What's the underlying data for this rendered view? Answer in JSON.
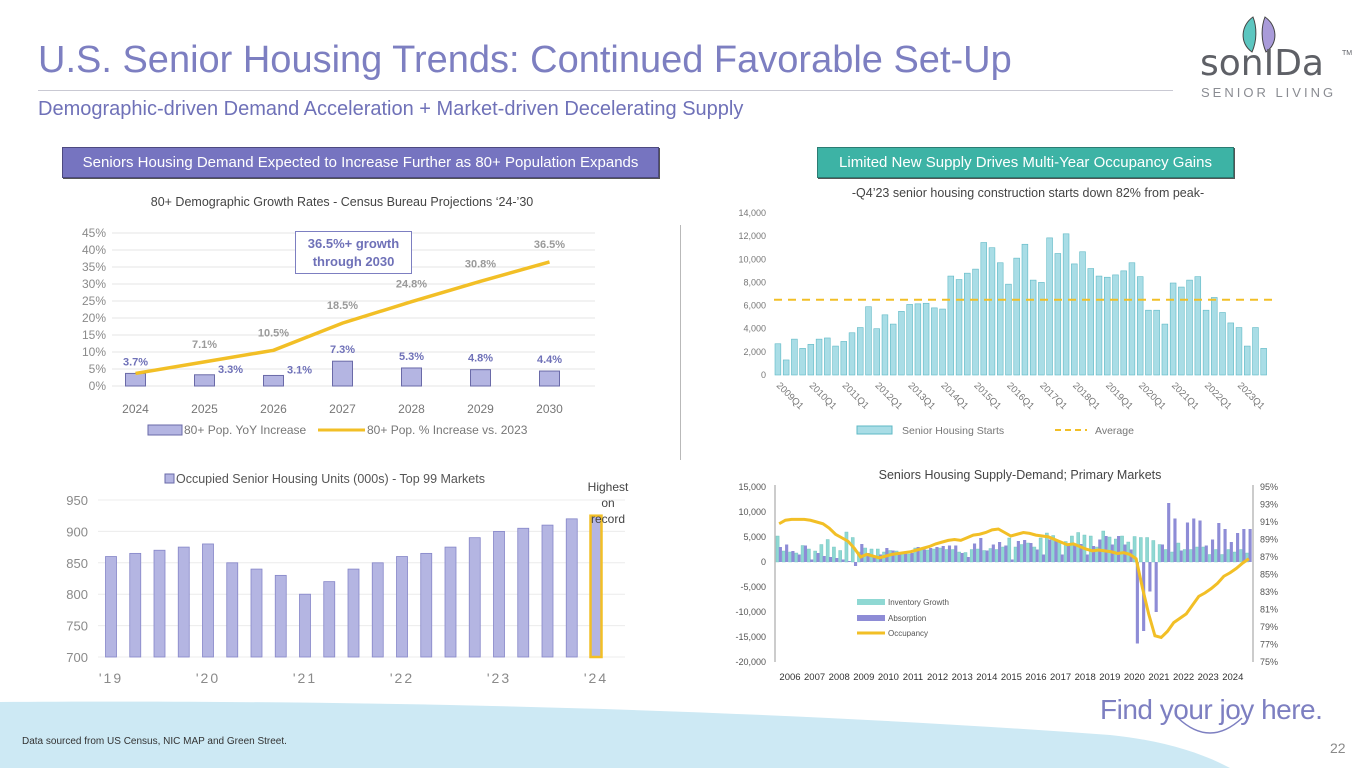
{
  "header": {
    "title": "U.S. Senior Housing Trends: Continued Favorable Set-Up",
    "subtitle": "Demographic-driven Demand Acceleration + Market-driven Decelerating Supply"
  },
  "logo": {
    "word": "sonIDa",
    "tm": "TM",
    "sub": "SENIOR LIVING",
    "leaf_colors": [
      "#5cc6c0",
      "#a99bd9"
    ]
  },
  "badges": {
    "left": "Seniors Housing Demand Expected to Increase Further as 80+ Population Expands",
    "right": "Limited New Supply Drives Multi-Year Occupancy Gains"
  },
  "footer": {
    "source": "Data sourced from US Census, NIC MAP and Green Street.",
    "tagline": "Find your joy here.",
    "page_number": "22"
  },
  "colors": {
    "purple": "#7d7fc1",
    "bar_purple": "#b4b5e2",
    "teal": "#3db3a5",
    "gold": "#f2bf26",
    "light_teal_bar": "#a9dde6",
    "band": "#cde9f4"
  },
  "chart_data": [
    {
      "id": "demographic",
      "type": "bar+line",
      "title": "80+ Demographic Growth Rates - Census Bureau Projections ‘24-’30",
      "categories": [
        "2024",
        "2025",
        "2026",
        "2027",
        "2028",
        "2029",
        "2030"
      ],
      "ylim": [
        0,
        45
      ],
      "yticks": [
        "0%",
        "5%",
        "10%",
        "15%",
        "20%",
        "25%",
        "30%",
        "35%",
        "40%",
        "45%"
      ],
      "series": [
        {
          "name": "80+ Pop. YoY Increase",
          "type": "bar",
          "values": [
            3.7,
            3.3,
            3.1,
            7.3,
            5.3,
            4.8,
            4.4
          ],
          "labels": [
            "3.7%",
            "3.3%",
            "3.1%",
            "7.3%",
            "5.3%",
            "4.8%",
            "4.4%"
          ]
        },
        {
          "name": "80+ Pop. % Increase vs. 2023",
          "type": "line",
          "values": [
            3.7,
            7.1,
            10.5,
            18.5,
            24.8,
            30.8,
            36.5
          ],
          "labels": [
            "",
            "7.1%",
            "10.5%",
            "18.5%",
            "24.8%",
            "30.8%",
            "36.5%"
          ]
        }
      ],
      "annotation": [
        "36.5%+ growth",
        "through 2030"
      ],
      "grid": true,
      "legend": "bottom"
    },
    {
      "id": "starts",
      "type": "bar",
      "title": "-Q4’23 senior housing construction starts down 82% from peak-",
      "x_labels": [
        "2009Q1",
        "2010Q1",
        "2011Q1",
        "2012Q1",
        "2013Q1",
        "2014Q1",
        "2015Q1",
        "2016Q1",
        "2017Q1",
        "2018Q1",
        "2019Q1",
        "2020Q1",
        "2021Q1",
        "2022Q1",
        "2023Q1"
      ],
      "ylim": [
        0,
        14000
      ],
      "yticks": [
        "0",
        "2,000",
        "4,000",
        "6,000",
        "8,000",
        "10,000",
        "12,000",
        "14,000"
      ],
      "series": [
        {
          "name": "Senior Housing Starts",
          "type": "bar",
          "values": [
            2700,
            1300,
            3100,
            2300,
            2650,
            3100,
            3200,
            2500,
            2900,
            3650,
            4100,
            5900,
            4000,
            5200,
            4400,
            5500,
            6100,
            6150,
            6200,
            5800,
            5700,
            8550,
            8250,
            8800,
            9150,
            11450,
            11000,
            9700,
            7850,
            10100,
            11300,
            8200,
            8000,
            11850,
            10500,
            12200,
            9600,
            10650,
            9200,
            8550,
            8450,
            8650,
            9000,
            9700,
            8500,
            5600,
            5600,
            4400,
            7950,
            7600,
            8200,
            8500,
            5600,
            6700,
            5400,
            4500,
            4100,
            2500,
            4100,
            2300
          ]
        },
        {
          "name": "Average",
          "type": "line-dashed",
          "value": 6500
        }
      ],
      "grid": false,
      "legend": "bottom"
    },
    {
      "id": "occupied",
      "type": "bar",
      "title": "",
      "x_labels": [
        "'19",
        "'20",
        "'21",
        "'22",
        "'23",
        "'24"
      ],
      "ylim": [
        700,
        950
      ],
      "yticks": [
        "700",
        "750",
        "800",
        "850",
        "900",
        "950"
      ],
      "series": [
        {
          "name": "Occupied Senior Housing Units (000s) - Top 99 Markets",
          "values": [
            860,
            865,
            870,
            875,
            880,
            850,
            840,
            830,
            800,
            820,
            840,
            850,
            860,
            865,
            875,
            890,
            900,
            905,
            910,
            920,
            925
          ]
        }
      ],
      "annotation": [
        "Highest on",
        "record"
      ],
      "grid": true,
      "legend": "top"
    },
    {
      "id": "supply-demand",
      "type": "bar+line",
      "title": "Seniors Housing Supply-Demand; Primary Markets",
      "x_labels": [
        "2006",
        "2007",
        "2008",
        "2009",
        "2010",
        "2011",
        "2012",
        "2013",
        "2014",
        "2015",
        "2016",
        "2017",
        "2018",
        "2019",
        "2020",
        "2021",
        "2022",
        "2023",
        "2024"
      ],
      "ylim": [
        -20000,
        15000
      ],
      "y2lim": [
        75,
        95
      ],
      "yticks": [
        "-20,000",
        "-15,000",
        "-10,000",
        "-5,000",
        "0",
        "5,000",
        "10,000",
        "15,000"
      ],
      "y2ticks": [
        "75%",
        "77%",
        "79%",
        "81%",
        "83%",
        "85%",
        "87%",
        "89%",
        "91%",
        "93%",
        "95%"
      ],
      "series": [
        {
          "name": "Inventory Growth",
          "type": "bar",
          "values": [
            5200,
            2200,
            2000,
            1800,
            3300,
            2600,
            2200,
            3500,
            4500,
            3000,
            2300,
            6000,
            4900,
            2000,
            2800,
            2600,
            2600,
            2000,
            2300,
            2200,
            1800,
            1600,
            2800,
            2700,
            2400,
            2600,
            2800,
            2500,
            2500,
            2000,
            1900,
            2500,
            2600,
            2300,
            2700,
            2500,
            3000,
            4800,
            3000,
            3500,
            3800,
            3000,
            4800,
            5800,
            5300,
            4000,
            4100,
            5200,
            5900,
            5400,
            5200,
            3000,
            6200,
            5000,
            4600,
            5200,
            4000,
            5100,
            4900,
            4900,
            4300,
            3500,
            2500,
            2000,
            3800,
            2500,
            2500,
            3000,
            3000,
            1500,
            2500,
            1500,
            2500,
            2000,
            2500,
            1800
          ]
        },
        {
          "name": "Absorption",
          "type": "bar",
          "values": [
            3000,
            3500,
            2200,
            1500,
            3300,
            500,
            1800,
            1200,
            1000,
            800,
            500,
            200,
            -800,
            3600,
            1800,
            1000,
            1500,
            2800,
            2300,
            1800,
            2000,
            1800,
            3000,
            2500,
            2800,
            3000,
            3200,
            3300,
            3300,
            1800,
            1000,
            3700,
            4800,
            2300,
            3500,
            4000,
            3300,
            500,
            4200,
            4400,
            3800,
            2500,
            1500,
            4500,
            4200,
            1500,
            3700,
            3700,
            3600,
            1500,
            3200,
            4500,
            5200,
            3500,
            5200,
            3500,
            2500,
            -16300,
            -13800,
            -5900,
            -10000,
            3500,
            11800,
            8700,
            2300,
            7900,
            8700,
            8300,
            3300,
            4500,
            7800,
            6600,
            4000,
            5800,
            6600,
            6600
          ]
        },
        {
          "name": "Occupancy",
          "type": "line",
          "axis": "right",
          "values": [
            90.8,
            91.2,
            91.3,
            91.3,
            91.3,
            91.2,
            91.0,
            90.8,
            90.3,
            89.6,
            89.2,
            88.8,
            88.0,
            87.0,
            87.3,
            87.1,
            86.9,
            87.1,
            87.3,
            87.4,
            87.5,
            87.6,
            87.8,
            88.0,
            88.2,
            88.5,
            88.7,
            88.9,
            89.0,
            88.9,
            89.2,
            89.5,
            89.6,
            89.8,
            90.1,
            90.2,
            89.8,
            89.4,
            89.6,
            89.8,
            89.7,
            89.5,
            89.4,
            89.3,
            89.0,
            88.7,
            88.4,
            88.5,
            88.2,
            87.9,
            87.7,
            87.8,
            87.7,
            87.6,
            87.4,
            87.5,
            87.3,
            86.8,
            83.5,
            80.5,
            78.0,
            77.8,
            78.5,
            79.5,
            80.0,
            80.5,
            81.5,
            82.5,
            82.9,
            83.4,
            84.0,
            84.8,
            85.2,
            85.7,
            86.3,
            86.8
          ]
        }
      ],
      "grid": false,
      "legend": "inside-left"
    }
  ]
}
